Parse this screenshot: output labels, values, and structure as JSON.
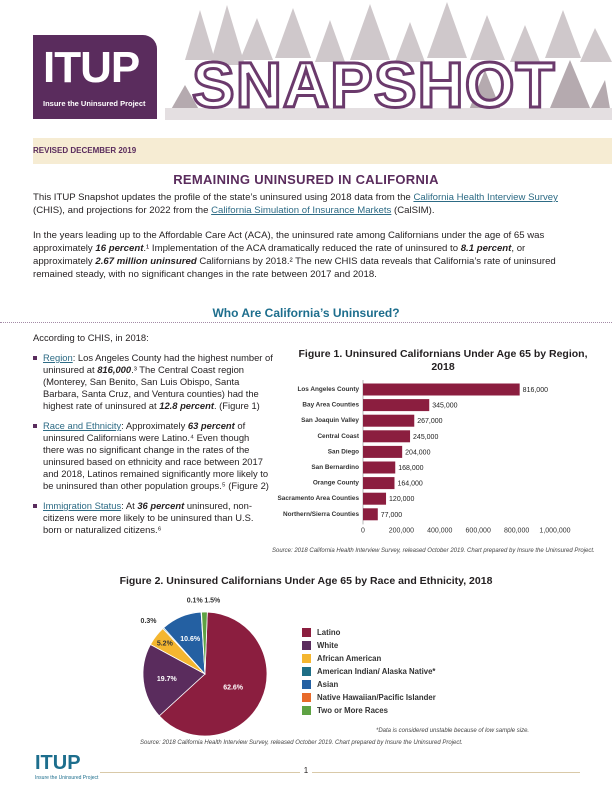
{
  "header": {
    "logo": "ITUP",
    "logo_tagline": "Insure the Uninsured Project",
    "snapshot_word": "SNAPSHOT",
    "revised": "REVISED DECEMBER 2019"
  },
  "title": "REMAINING UNINSURED IN CALIFORNIA",
  "intro": {
    "p1_a": "This ITUP Snapshot updates the profile of the state’s uninsured using 2018 data from the ",
    "p1_link1": "California Health Interview Survey",
    "p1_b": " (CHIS), and projections for 2022 from the ",
    "p1_link2": "California Simulation of Insurance Markets",
    "p1_c": " (CalSIM).",
    "p2_a": "In the years leading up to the Affordable Care Act (ACA), the uninsured rate among Californians under the age of 65 was approximately ",
    "p2_b1": "16 percent",
    "p2_b": ".¹ Implementation of the ACA dramatically reduced the rate of uninsured to ",
    "p2_b2": "8.1 percent",
    "p2_c": ", or approximately ",
    "p2_b3": "2.67 million uninsured",
    "p2_d": " Californians by 2018.² The new CHIS data reveals that California’s rate of uninsured remained steady, with no significant changes in the rate between 2017 and 2018."
  },
  "section_title": "Who Are California’s Uninsured?",
  "left": {
    "lead": "According to CHIS, in 2018:",
    "b1_label": "Region",
    "b1_a": ": Los Angeles County had the highest number of uninsured at ",
    "b1_b": "816,000",
    "b1_c": ".³ The Central Coast region (Monterey, San Benito, San Luis Obispo, Santa Barbara, Santa Cruz, and Ventura counties) had the highest rate of uninsured at ",
    "b1_d": "12.8 percent",
    "b1_e": ". (Figure 1)",
    "b2_label": "Race and Ethnicity",
    "b2_a": ": Approximately ",
    "b2_b": "63 percent",
    "b2_c": " of uninsured Californians were Latino.⁴ Even though there was no significant change in the rates of the uninsured based on ethnicity and race between 2017 and 2018, Latinos remained significantly more likely to be uninsured than other population groups.⁵ (Figure 2)",
    "b3_label": "Immigration Status",
    "b3_a": ": At ",
    "b3_b": "36 percent",
    "b3_c": " uninsured, non-citizens were more likely to be uninsured than U.S. born or naturalized citizens.⁶"
  },
  "fig1": {
    "title": "Figure 1. Uninsured Californians Under Age 65 by Region, 2018",
    "source": "Source: 2018 California Health Interview Survey, released October 2019. Chart prepared by Insure the Uninsured Project."
  },
  "fig2": {
    "title": "Figure 2. Uninsured Californians Under Age 65 by Race and Ethnicity, 2018",
    "note": "*Data is considered unstable because of low sample size.",
    "source": "Source: 2018 California Health Interview Survey, released October 2019. Chart prepared by Insure the Uninsured Project."
  },
  "footer": {
    "logo": "ITUP",
    "tagline": "Insure the Uninsured Project",
    "page": "1"
  },
  "chart_data": [
    {
      "type": "bar",
      "orientation": "horizontal",
      "title": "Figure 1. Uninsured Californians Under Age 65 by Region, 2018",
      "categories": [
        "Los Angeles County",
        "Bay Area Counties",
        "San Joaquin Valley",
        "Central Coast",
        "San Diego",
        "San Bernardino",
        "Orange County",
        "Sacramento Area Counties",
        "Northern/Sierra Counties"
      ],
      "values": [
        816000,
        345000,
        267000,
        245000,
        204000,
        168000,
        164000,
        120000,
        77000
      ],
      "value_labels": [
        "816,000",
        "345,000",
        "267,000",
        "245,000",
        "204,000",
        "168,000",
        "164,000",
        "120,000",
        "77,000"
      ],
      "xlim": [
        0,
        1000000
      ],
      "xticks": [
        "0",
        "200,000",
        "400,000",
        "600,000",
        "800,000",
        "1,000,000"
      ],
      "color": "#8b1e3f",
      "grid": false
    },
    {
      "type": "pie",
      "title": "Figure 2. Uninsured Californians Under Age 65 by Race and Ethnicity, 2018",
      "categories": [
        "Latino",
        "White",
        "African American",
        "American Indian/ Alaska Native*",
        "Asian",
        "Native Hawaiian/Pacific Islander",
        "Two or More Races"
      ],
      "values": [
        62.6,
        19.7,
        5.2,
        0.3,
        10.6,
        0.1,
        1.5
      ],
      "value_labels": [
        "62.6%",
        "19.7%",
        "5.2%",
        "0.3%",
        "10.6%",
        "0.1%",
        "1.5%"
      ],
      "colors": [
        "#8b1e3f",
        "#5a2c5d",
        "#f4b630",
        "#1e6e86",
        "#2460a2",
        "#e86a2a",
        "#5ea243"
      ],
      "legend": "right"
    }
  ]
}
